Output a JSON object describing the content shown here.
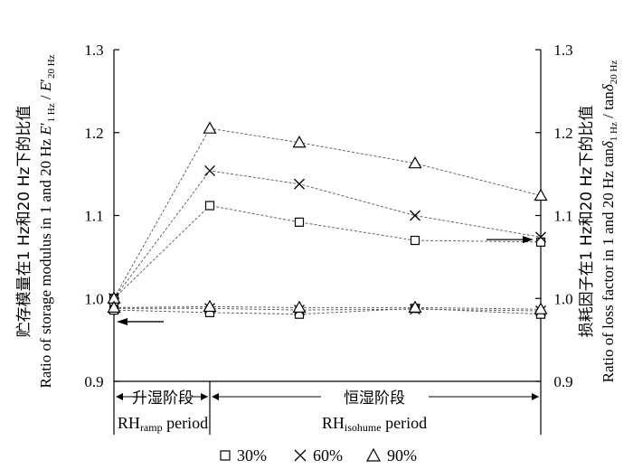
{
  "chart_data": {
    "type": "line",
    "x_positions": [
      0,
      1,
      2,
      3,
      4
    ],
    "y_left_ticks": [
      "0.9",
      "1.0",
      "1.1",
      "1.2",
      "1.3"
    ],
    "y_right_ticks": [
      "0.9",
      "1.0",
      "1.1",
      "1.2",
      "1.3"
    ],
    "ylim": [
      0.9,
      1.3
    ],
    "ylabel_left": {
      "cn": "贮存模量在1 Hz和20 Hz下的比值",
      "en": "Ratio of storage modulus in 1 and 20 Hz E′1 Hz / E′20 Hz"
    },
    "ylabel_right": {
      "cn": "损耗因子在1 Hz和20 Hz下的比值",
      "en": "Ratio of loss factor in 1 and 20 Hz tanδ1 Hz / tanδ20 Hz"
    },
    "periods": [
      {
        "cn": "升湿阶段",
        "en": "RHramp period"
      },
      {
        "cn": "恒湿阶段",
        "en": "RHisohume period"
      }
    ],
    "series": [
      {
        "name": "30%",
        "marker": "square",
        "storage": [
          1.0,
          1.112,
          1.092,
          1.07,
          1.068
        ],
        "loss": [
          0.986,
          0.983,
          0.981,
          0.988,
          0.981
        ]
      },
      {
        "name": "60%",
        "marker": "cross",
        "storage": [
          1.0,
          1.154,
          1.138,
          1.1,
          1.074
        ],
        "loss": [
          0.988,
          0.988,
          0.986,
          0.987,
          0.985
        ]
      },
      {
        "name": "90%",
        "marker": "triangle",
        "storage": [
          1.0,
          1.205,
          1.188,
          1.163,
          1.124
        ],
        "loss": [
          0.989,
          0.99,
          0.989,
          0.989,
          0.987
        ]
      }
    ],
    "arrows": [
      {
        "points_to": "left-axis",
        "y_value": 0.972
      },
      {
        "points_to": "right-axis",
        "y_value": 1.071
      }
    ],
    "grid": false,
    "legend_position": "bottom"
  }
}
